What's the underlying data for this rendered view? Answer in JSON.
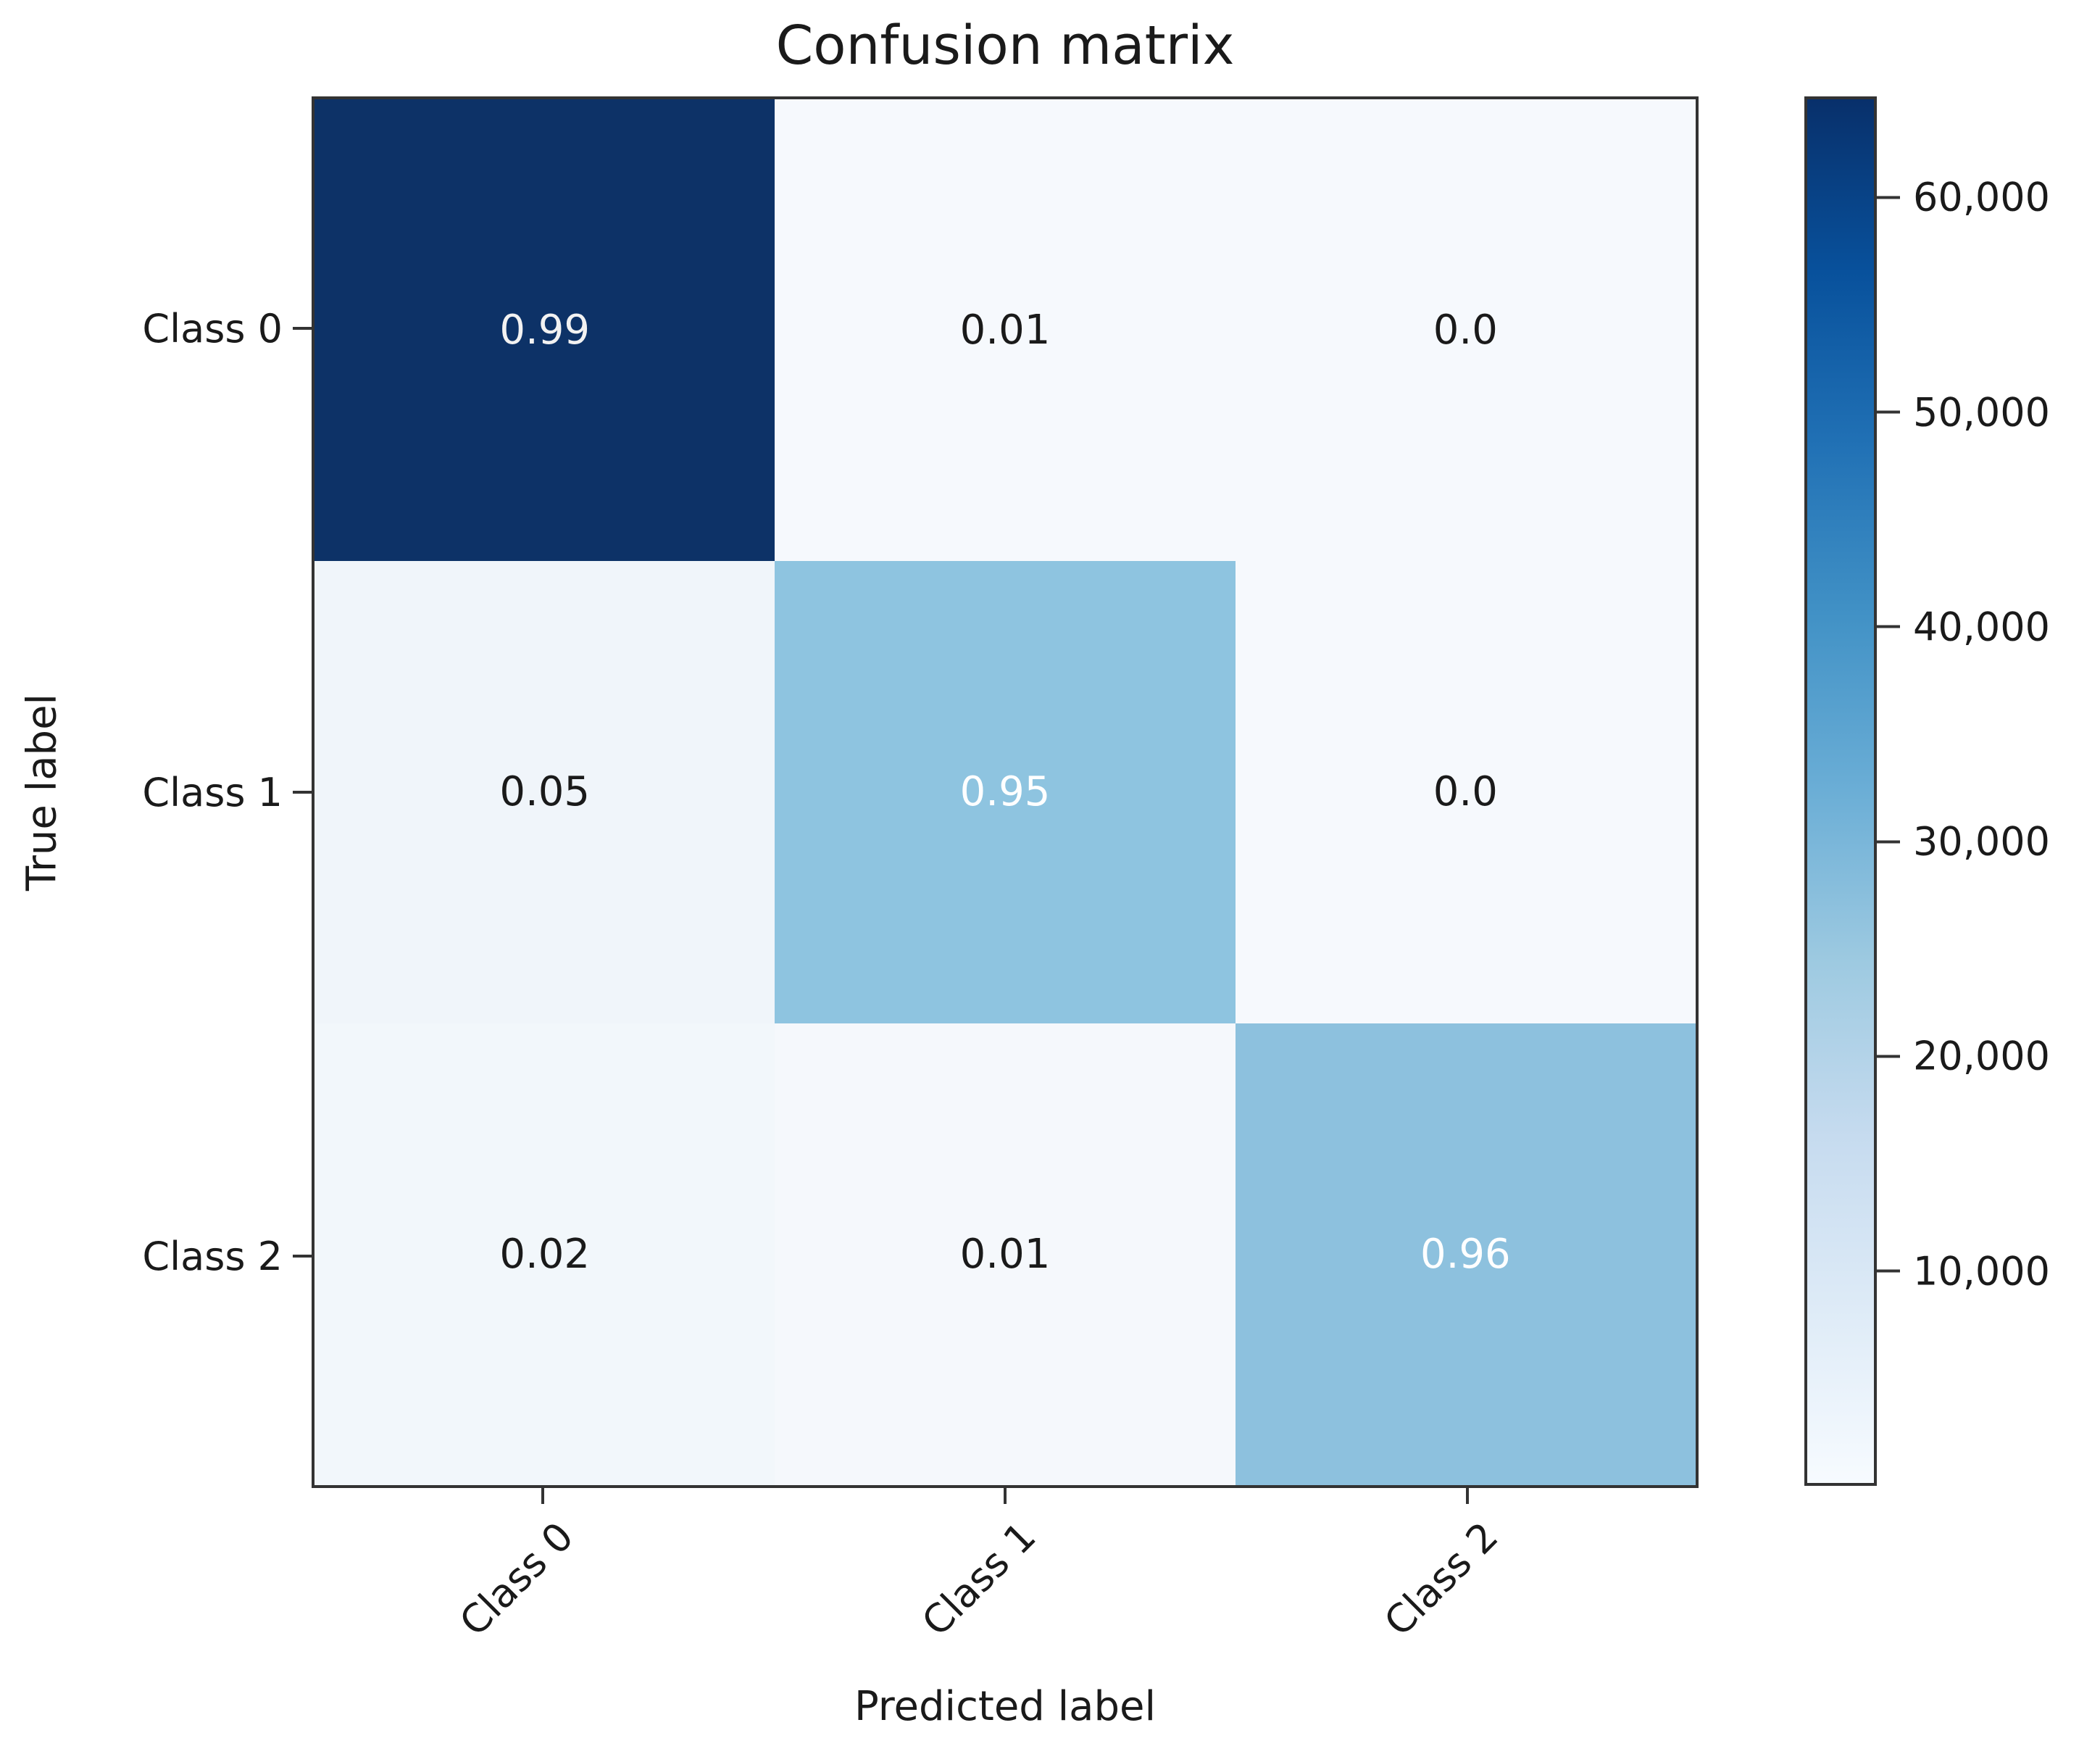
{
  "chart_data": {
    "type": "heatmap",
    "title": "Confusion matrix",
    "xlabel": "Predicted label",
    "ylabel": "True label",
    "x_categories": [
      "Class 0",
      "Class 1",
      "Class 2"
    ],
    "y_categories": [
      "Class 0",
      "Class 1",
      "Class 2"
    ],
    "values": [
      [
        0.99,
        0.01,
        0.0
      ],
      [
        0.05,
        0.95,
        0.0
      ],
      [
        0.02,
        0.01,
        0.96
      ]
    ],
    "cell_labels": [
      [
        "0.99",
        "0.01",
        "0.0"
      ],
      [
        "0.05",
        "0.95",
        "0.0"
      ],
      [
        "0.02",
        "0.01",
        "0.96"
      ]
    ],
    "cell_colors": [
      [
        "#0d3267",
        "#f6f9fd",
        "#f6f9fd"
      ],
      [
        "#f0f5fa",
        "#8ec4e0",
        "#f6f9fd"
      ],
      [
        "#f2f7fb",
        "#f5f8fc",
        "#8dc1de"
      ]
    ],
    "cell_text_colors": [
      [
        "#f2f2f2",
        "#1a1a1a",
        "#1a1a1a"
      ],
      [
        "#1a1a1a",
        "#ffffff",
        "#1a1a1a"
      ],
      [
        "#1a1a1a",
        "#1a1a1a",
        "#ffffff"
      ]
    ],
    "grid": false,
    "legend": "none",
    "colorbar": {
      "position": "right",
      "colormap": "Blues",
      "vmin": 0,
      "vmax": 64700,
      "tick_values": [
        60000,
        50000,
        40000,
        30000,
        20000,
        10000
      ],
      "tick_labels": [
        "60,000",
        "50,000",
        "40,000",
        "30,000",
        "20,000",
        "10,000"
      ],
      "gradient_stops_top_to_bottom": [
        "#08306b",
        "#08519c",
        "#2171b5",
        "#4292c6",
        "#6baed6",
        "#9ecae1",
        "#c6dbef",
        "#deebf7",
        "#f7fbff"
      ]
    },
    "colors": {
      "background": "#ffffff",
      "axis_line": "#333333",
      "text": "#1a1a1a"
    }
  }
}
